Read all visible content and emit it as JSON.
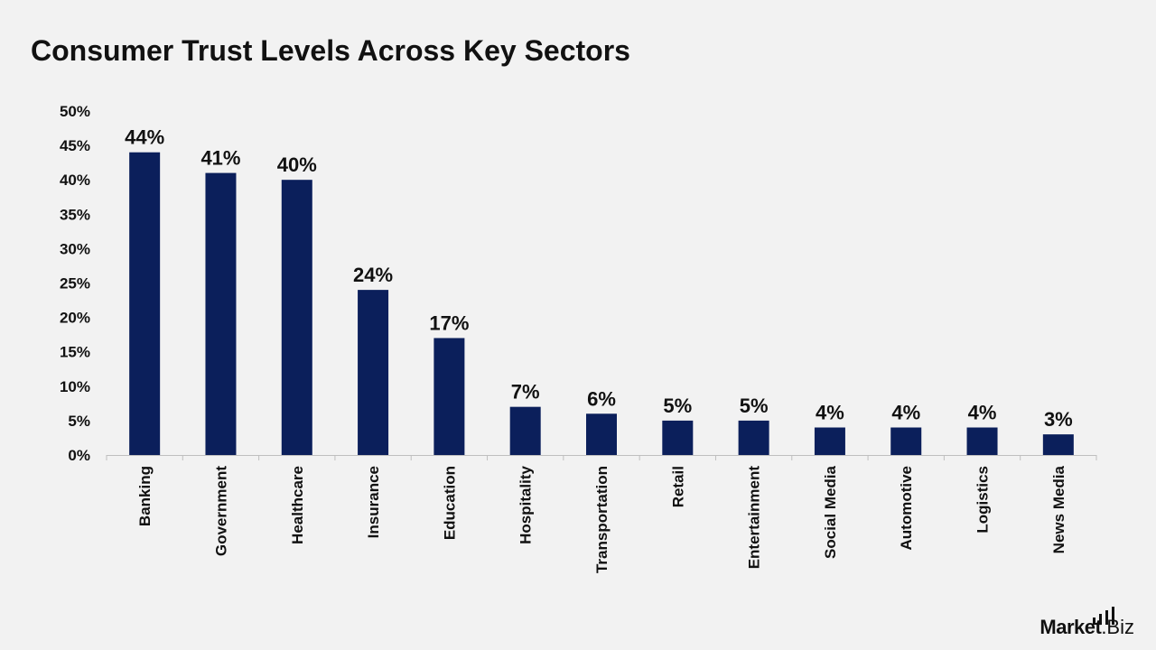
{
  "title": "Consumer Trust Levels Across Key Sectors",
  "brand": {
    "name_bold": "Market",
    "name_light": ".Biz",
    "icon": "bar-chart-icon"
  },
  "colors": {
    "bar": "#0b1f5b",
    "background": "#f2f2f2",
    "axis": "#bfbfbf",
    "text": "#111111"
  },
  "chart_data": {
    "type": "bar",
    "title": "Consumer Trust Levels Across Key Sectors",
    "xlabel": "",
    "ylabel": "",
    "categories": [
      "Banking",
      "Government",
      "Healthcare",
      "Insurance",
      "Education",
      "Hospitality",
      "Transportation",
      "Retail",
      "Entertainment",
      "Social Media",
      "Automotive",
      "Logistics",
      "News Media"
    ],
    "values": [
      44,
      41,
      40,
      24,
      17,
      7,
      6,
      5,
      5,
      4,
      4,
      4,
      3
    ],
    "data_labels": [
      "44%",
      "41%",
      "40%",
      "24%",
      "17%",
      "7%",
      "6%",
      "5%",
      "5%",
      "4%",
      "4%",
      "4%",
      "3%"
    ],
    "yticks": [
      "0%",
      "5%",
      "10%",
      "15%",
      "20%",
      "25%",
      "30%",
      "35%",
      "40%",
      "45%",
      "50%"
    ],
    "ylim": [
      0,
      50
    ],
    "grid": false,
    "legend": "none"
  }
}
